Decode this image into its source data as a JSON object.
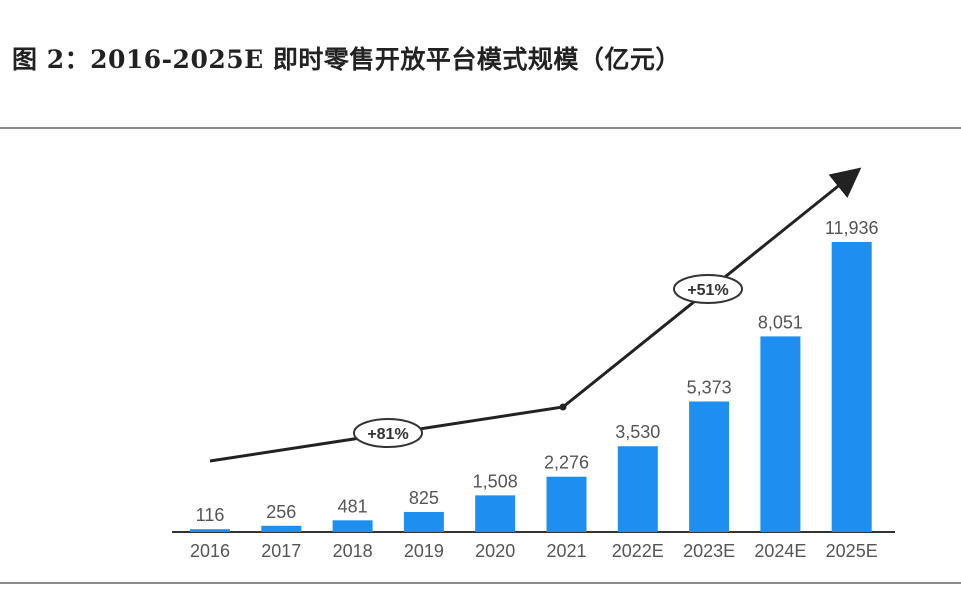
{
  "title": "图 2：2016-2025E 即时零售开放平台模式规模（亿元）",
  "chart_data": {
    "type": "bar",
    "title": "图 2：2016-2025E 即时零售开放平台模式规模（亿元）",
    "categories": [
      "2016",
      "2017",
      "2018",
      "2019",
      "2020",
      "2021",
      "2022E",
      "2023E",
      "2024E",
      "2025E"
    ],
    "values": [
      116,
      256,
      481,
      825,
      1508,
      2276,
      3530,
      5373,
      8051,
      11936
    ],
    "value_labels": [
      "116",
      "256",
      "481",
      "825",
      "1,508",
      "2,276",
      "3,530",
      "5,373",
      "8,051",
      "11,936"
    ],
    "ylim": [
      0,
      12500
    ],
    "grid": false,
    "bar_color": "#1e8ff0",
    "annotations": [
      {
        "text": "+81%",
        "span": [
          "2016",
          "2021"
        ]
      },
      {
        "text": "+51%",
        "span": [
          "2021",
          "2025E"
        ]
      }
    ]
  }
}
